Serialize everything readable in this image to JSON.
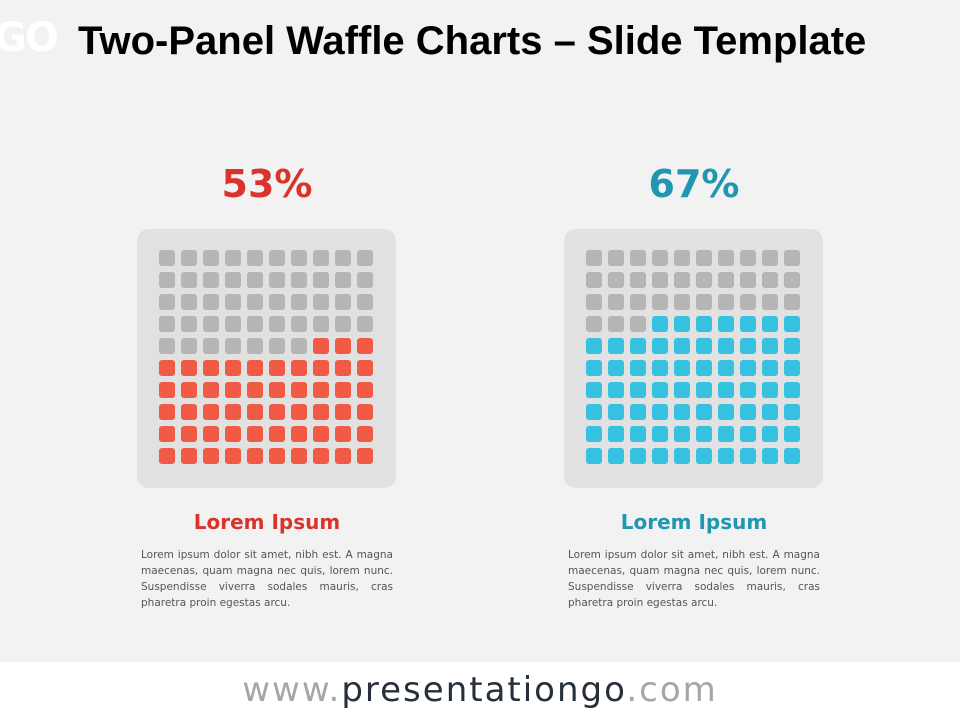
{
  "title": "Two-Panel Waffle Charts – Slide Template",
  "logo_text": "GO",
  "colors": {
    "background": "#f2f2f2",
    "card": "#e1e1e1",
    "empty_cell": "#b5b5b5",
    "left_accent": "#d9342b",
    "left_fill": "#f15a45",
    "right_accent": "#2196b0",
    "right_fill": "#36c2e0"
  },
  "panels": [
    {
      "percent_label": "53%",
      "filled_cells": 53,
      "heading": "Lorem Ipsum",
      "body": "Lorem ipsum dolor sit amet, nibh est. A magna maecenas, quam magna nec quis, lorem nunc. Suspendisse viverra sodales mauris, cras pharetra proin egestas arcu."
    },
    {
      "percent_label": "67%",
      "filled_cells": 67,
      "heading": "Lorem Ipsum",
      "body": "Lorem ipsum dolor sit amet, nibh est. A magna maecenas, quam magna nec quis, lorem nunc. Suspendisse viverra sodales mauris, cras pharetra proin egestas arcu."
    }
  ],
  "footer": {
    "prefix": "www.",
    "domain": "presentationgo",
    "suffix": ".com"
  }
}
